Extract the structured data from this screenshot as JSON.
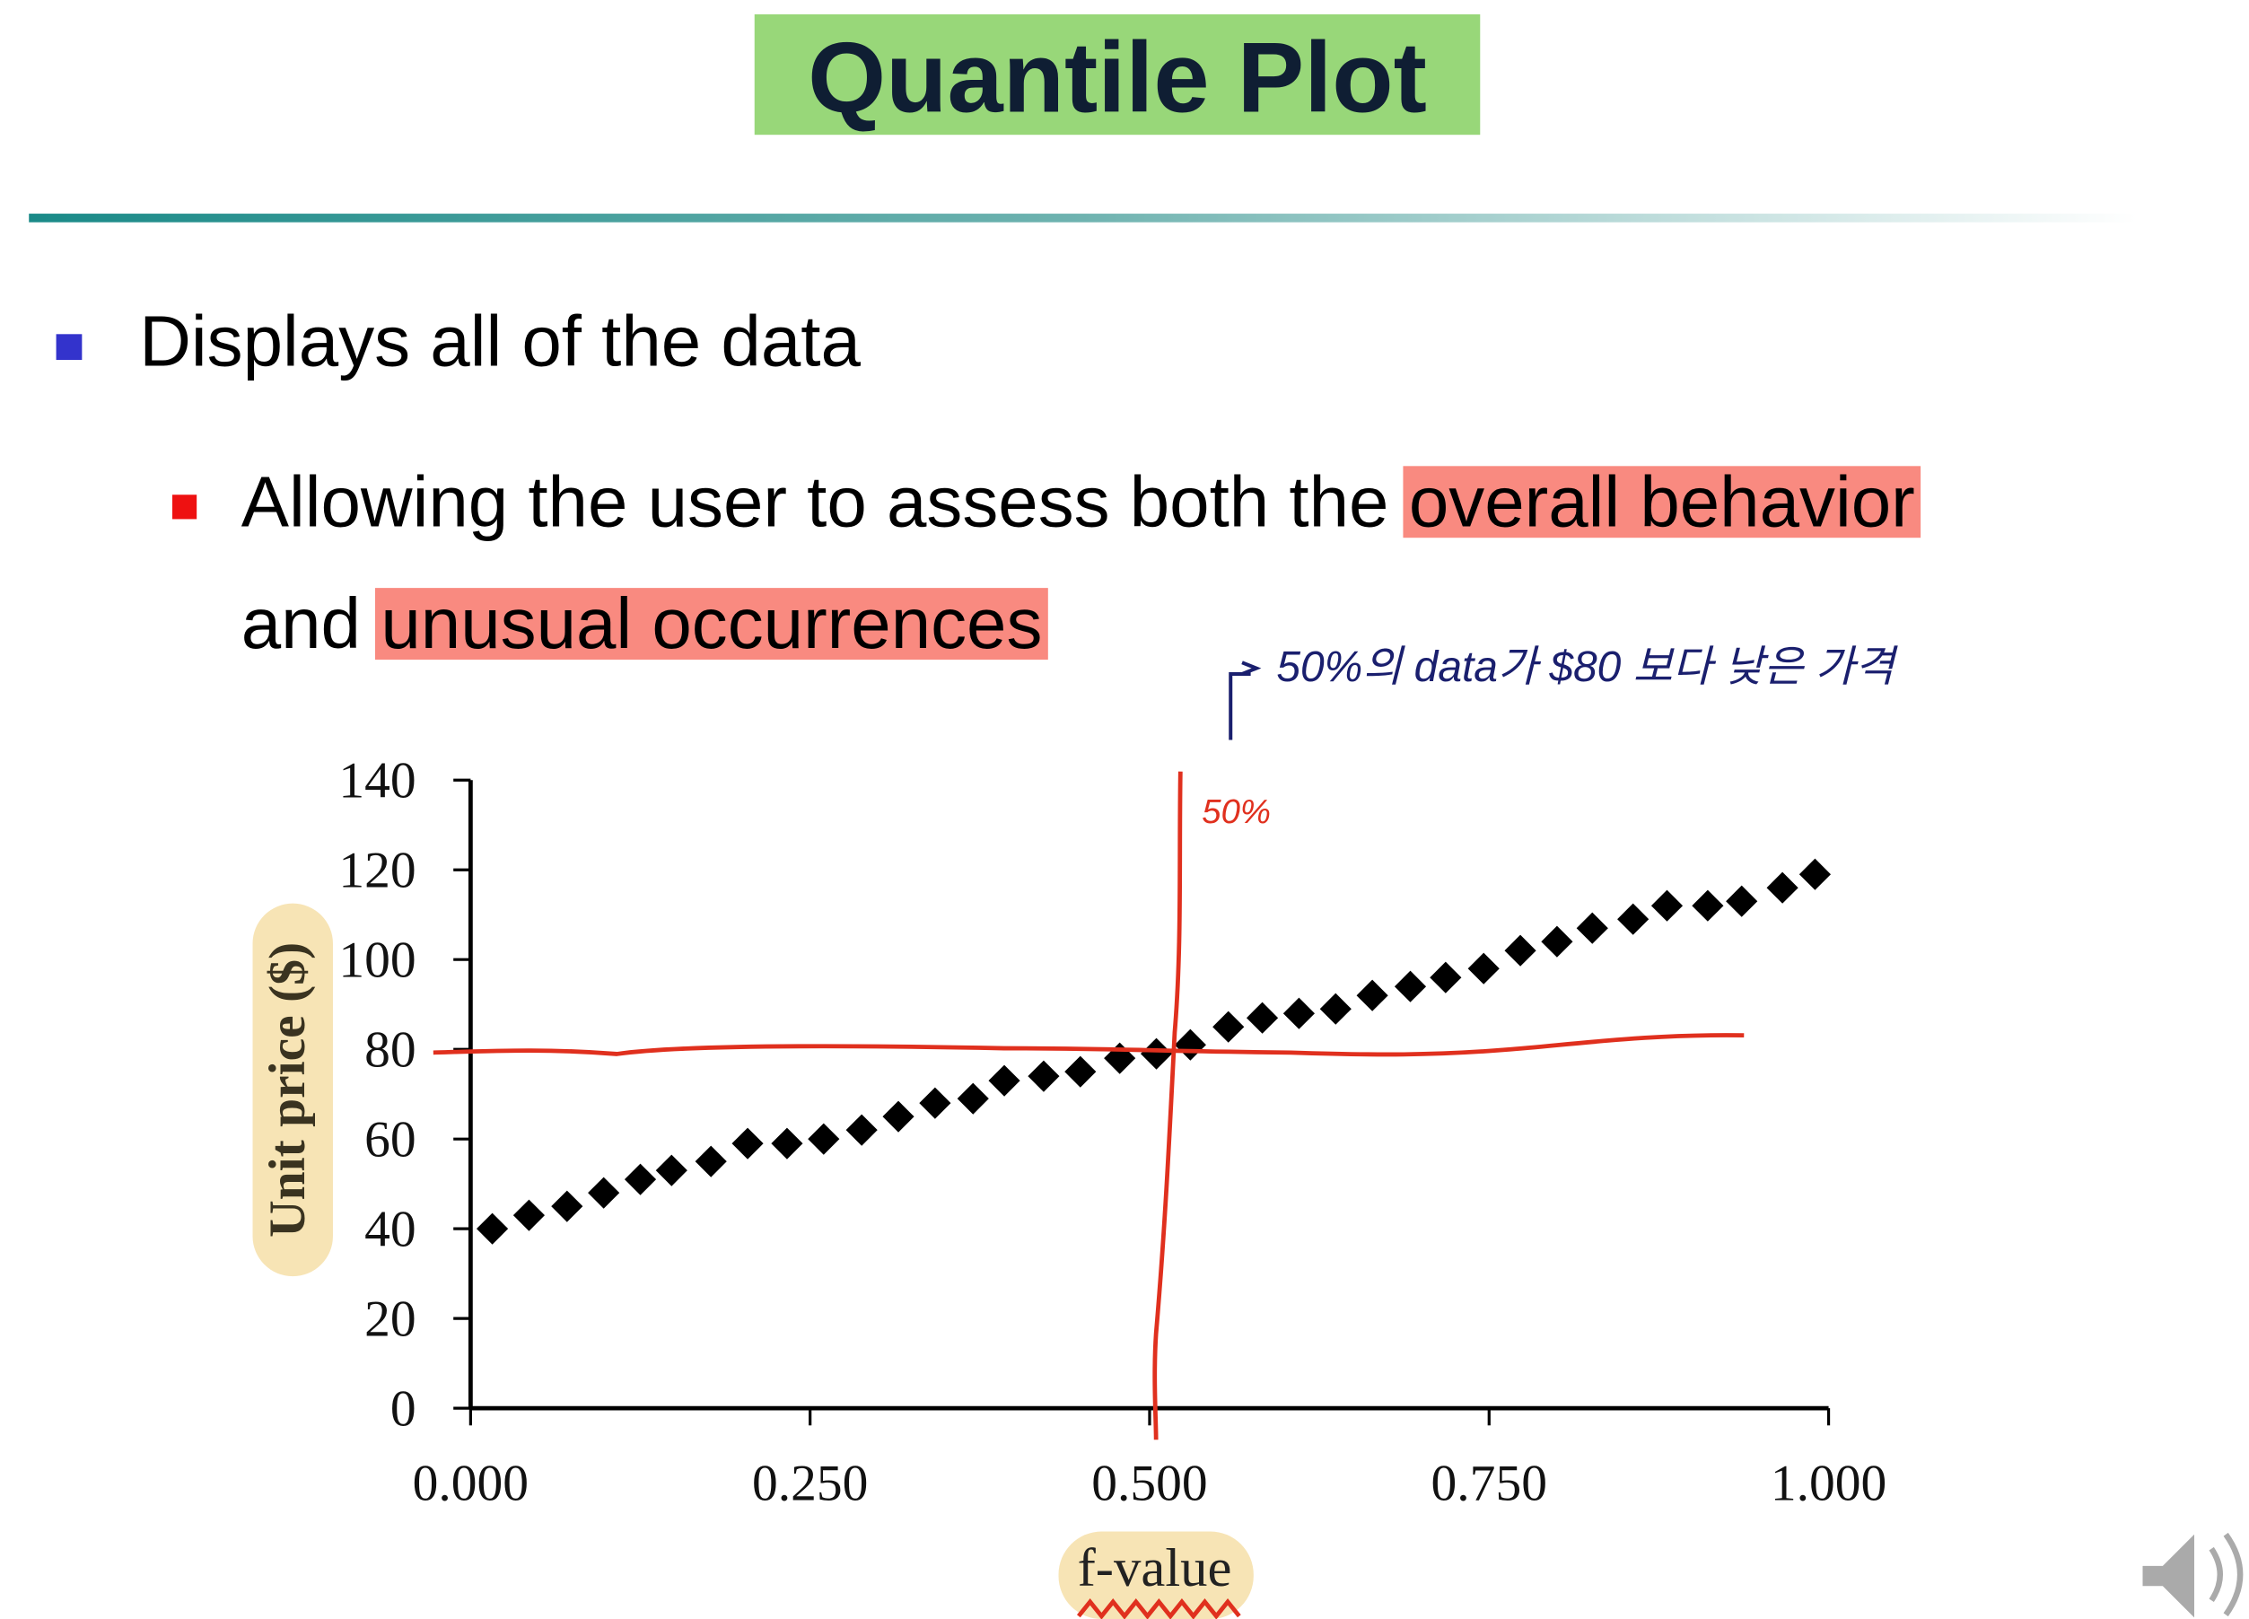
{
  "slide": {
    "title": "Quantile Plot",
    "bullets": [
      {
        "text": "Displays all of the data"
      },
      {
        "parts": [
          "Allowing the user to assess both the",
          "overall behavior",
          "and",
          "unusual occurrences"
        ]
      }
    ],
    "annotations": [
      "50%의 data가 $80 보다 낮은 가격",
      "50%"
    ]
  },
  "chart_data": {
    "type": "scatter",
    "x_label": "f-value",
    "y_label": "Unit price ($)",
    "color": "#000000",
    "marker": "diamond",
    "x": [
      0.016,
      0.043,
      0.071,
      0.098,
      0.125,
      0.148,
      0.177,
      0.204,
      0.233,
      0.26,
      0.288,
      0.315,
      0.342,
      0.37,
      0.393,
      0.422,
      0.449,
      0.478,
      0.505,
      0.53,
      0.558,
      0.583,
      0.61,
      0.637,
      0.664,
      0.692,
      0.718,
      0.746,
      0.773,
      0.8,
      0.826,
      0.856,
      0.881,
      0.911,
      0.936,
      0.966,
      0.99
    ],
    "values": [
      40,
      43,
      45,
      48,
      51,
      53,
      55,
      59,
      59,
      60,
      62,
      65,
      68,
      69,
      73,
      74,
      75,
      78,
      79,
      81,
      85,
      87,
      88,
      89,
      92,
      94,
      96,
      98,
      102,
      104,
      107,
      109,
      112,
      112,
      113,
      116,
      119
    ],
    "xlim": [
      0,
      1
    ],
    "ylim": [
      0,
      140
    ],
    "xticks": [
      {
        "value": 0,
        "label": "0.000"
      },
      {
        "value": 0.25,
        "label": "0.250"
      },
      {
        "value": 0.5,
        "label": "0.500"
      },
      {
        "value": 0.75,
        "label": "0.750"
      },
      {
        "value": 1,
        "label": "1.000"
      }
    ],
    "yticks": [
      0,
      20,
      40,
      60,
      80,
      100,
      120,
      140
    ]
  }
}
